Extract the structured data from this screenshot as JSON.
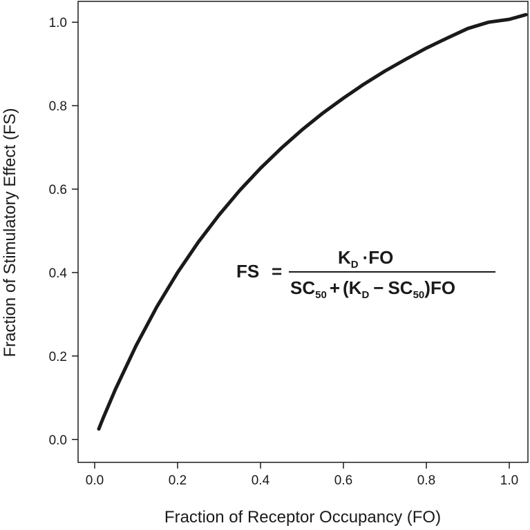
{
  "chart_data": {
    "type": "line",
    "xlabel": "Fraction of Receptor Occupancy (FO)",
    "ylabel": "Fraction of Stimulatory Effect (FS)",
    "xlim": [
      -0.04,
      1.045
    ],
    "ylim": [
      -0.055,
      1.05
    ],
    "xticks": [
      "0.0",
      "0.2",
      "0.4",
      "0.6",
      "0.8",
      "1.0"
    ],
    "yticks": [
      "0.0",
      "0.2",
      "0.4",
      "0.6",
      "0.8",
      "1.0"
    ],
    "grid": false,
    "legend": "none",
    "series": [
      {
        "color": "#1a1a1a",
        "x": [
          0.01,
          0.02,
          0.05,
          0.1,
          0.15,
          0.2,
          0.25,
          0.3,
          0.35,
          0.4,
          0.45,
          0.5,
          0.55,
          0.6,
          0.65,
          0.7,
          0.75,
          0.8,
          0.85,
          0.9,
          0.95,
          1.0,
          1.04
        ],
        "y": [
          0.025,
          0.05,
          0.12,
          0.225,
          0.318,
          0.4,
          0.473,
          0.538,
          0.597,
          0.65,
          0.698,
          0.742,
          0.782,
          0.818,
          0.852,
          0.883,
          0.911,
          0.938,
          0.962,
          0.985,
          1.0,
          1.007,
          1.018
        ]
      }
    ],
    "annotation": {
      "lhs": "FS",
      "equals": "=",
      "numerator": {
        "k": "K",
        "k_sub": "D",
        "dot": "·",
        "fo": "FO"
      },
      "denominator": {
        "sc": "SC",
        "sc_sub": "50",
        "plus": "+",
        "open": "(K",
        "k_sub": "D",
        "minus": "−",
        "sc2": "SC",
        "sc2_sub": "50",
        "close": ")FO"
      }
    }
  }
}
